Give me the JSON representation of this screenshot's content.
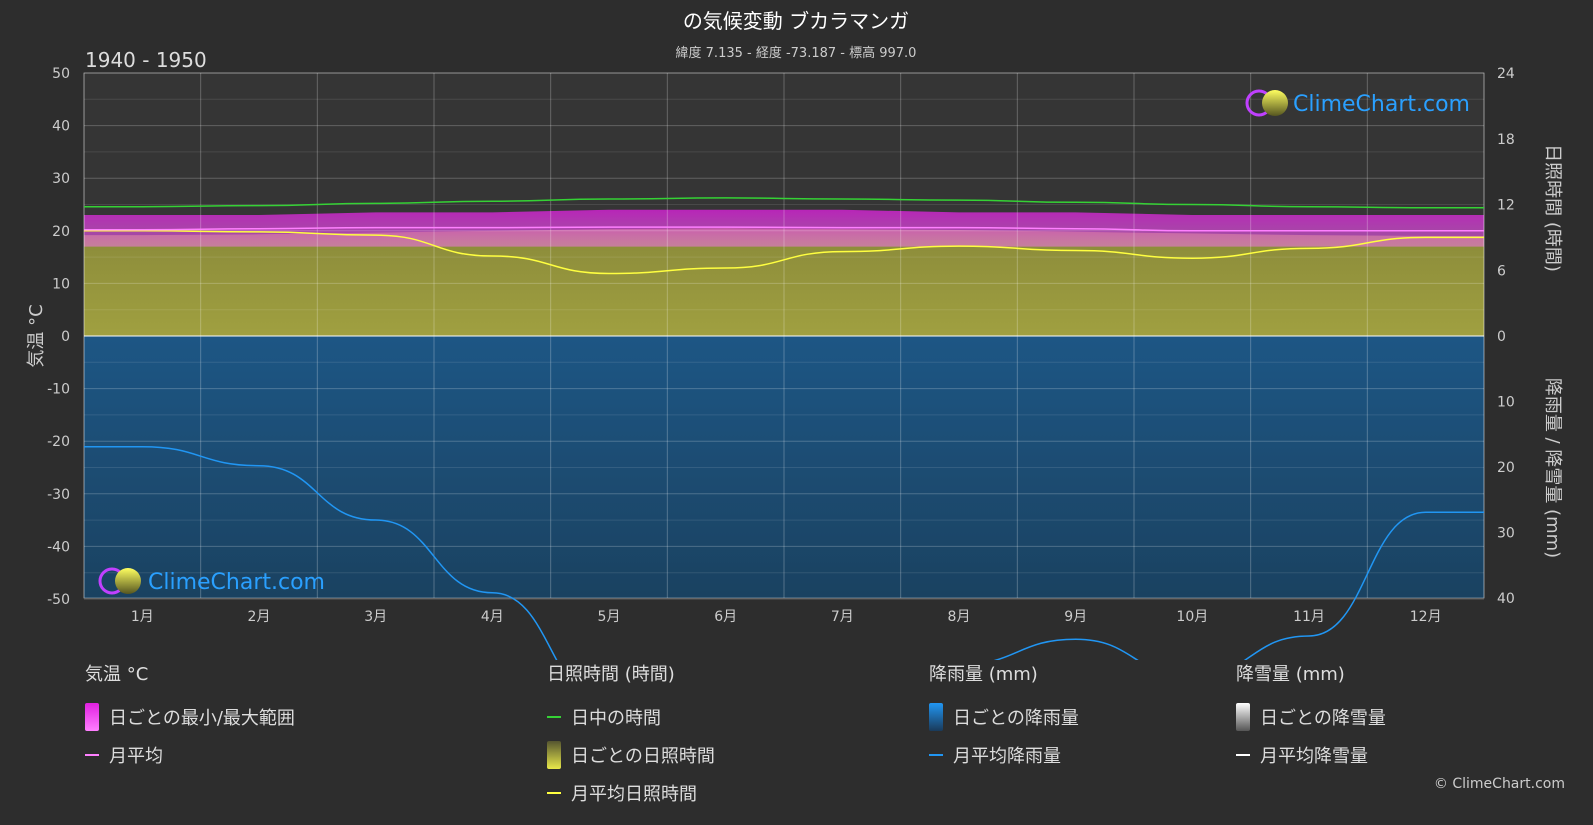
{
  "header": {
    "title": "の気候変動 ブカラマンガ",
    "subtitle": "緯度 7.135 - 経度 -73.187 - 標高 997.0",
    "period": "1940 - 1950"
  },
  "watermark": {
    "text": "ClimeChart.com"
  },
  "copyright": "© ClimeChart.com",
  "colors": {
    "background": "#2d2d2d",
    "temp_range": "#e020e0",
    "temp_avg": "#ff80ff",
    "daylight": "#35d235",
    "sunshine_daily": "#e8e84a",
    "sunshine_avg": "#ffff40",
    "rain_daily": "#1e73be",
    "rain_avg": "#2196f3",
    "snow_avg": "#ffffff"
  },
  "chart_data": {
    "type": "line",
    "categories": [
      "1月",
      "2月",
      "3月",
      "4月",
      "5月",
      "6月",
      "7月",
      "8月",
      "9月",
      "10月",
      "11月",
      "12月"
    ],
    "axes": {
      "left": {
        "label": "気温 °C",
        "ticks": [
          50,
          40,
          30,
          20,
          10,
          0,
          -10,
          -20,
          -30,
          -40,
          -50
        ],
        "ylim": [
          -50,
          50
        ]
      },
      "right_top": {
        "label": "日照時間 (時間)",
        "ticks": [
          24,
          18,
          12,
          6,
          0
        ],
        "ylim": [
          0,
          24
        ]
      },
      "right_bottom": {
        "label": "降雨量 / 降雪量 (mm)",
        "ticks": [
          0,
          10,
          20,
          30,
          40
        ],
        "ylim": [
          0,
          40
        ],
        "inverted": true
      }
    },
    "series": [
      {
        "name": "日中の時間",
        "axis": "right_top",
        "values": [
          11.8,
          11.9,
          12.1,
          12.3,
          12.5,
          12.6,
          12.5,
          12.4,
          12.2,
          12.0,
          11.8,
          11.7
        ]
      },
      {
        "name": "月平均日照時間",
        "axis": "right_top",
        "values": [
          9.6,
          9.5,
          9.2,
          7.3,
          5.7,
          6.2,
          7.7,
          8.2,
          7.8,
          7.1,
          8.0,
          9.0
        ]
      },
      {
        "name": "月平均",
        "axis": "left",
        "values": [
          20.2,
          20.4,
          20.6,
          20.6,
          20.7,
          20.7,
          20.6,
          20.6,
          20.4,
          20.0,
          20.0,
          20.0
        ]
      },
      {
        "name": "月平均降雨量",
        "axis": "right_bottom",
        "values": [
          16.9,
          19.8,
          28.1,
          39.2,
          56.3,
          61.7,
          54.2,
          50.2,
          46.3,
          52.0,
          45.8,
          26.9
        ]
      },
      {
        "name": "月平均降雪量",
        "axis": "right_bottom",
        "values": [
          0,
          0,
          0,
          0,
          0,
          0,
          0,
          0,
          0,
          0,
          0,
          0
        ]
      }
    ],
    "daily_temp_range": {
      "min": [
        17,
        17,
        17,
        17,
        17,
        17,
        17,
        17,
        17,
        17,
        17,
        17
      ],
      "max": [
        23,
        23,
        23.5,
        23.5,
        24,
        24,
        24,
        23.5,
        23.5,
        23,
        23,
        23
      ]
    }
  },
  "legend": {
    "temperature": {
      "heading": "気温 °C",
      "items": [
        "日ごとの最小/最大範囲",
        "月平均"
      ]
    },
    "sunshine": {
      "heading": "日照時間 (時間)",
      "items": [
        "日中の時間",
        "日ごとの日照時間",
        "月平均日照時間"
      ]
    },
    "rain": {
      "heading": "降雨量 (mm)",
      "items": [
        "日ごとの降雨量",
        "月平均降雨量"
      ]
    },
    "snow": {
      "heading": "降雪量 (mm)",
      "items": [
        "日ごとの降雪量",
        "月平均降雪量"
      ]
    }
  }
}
